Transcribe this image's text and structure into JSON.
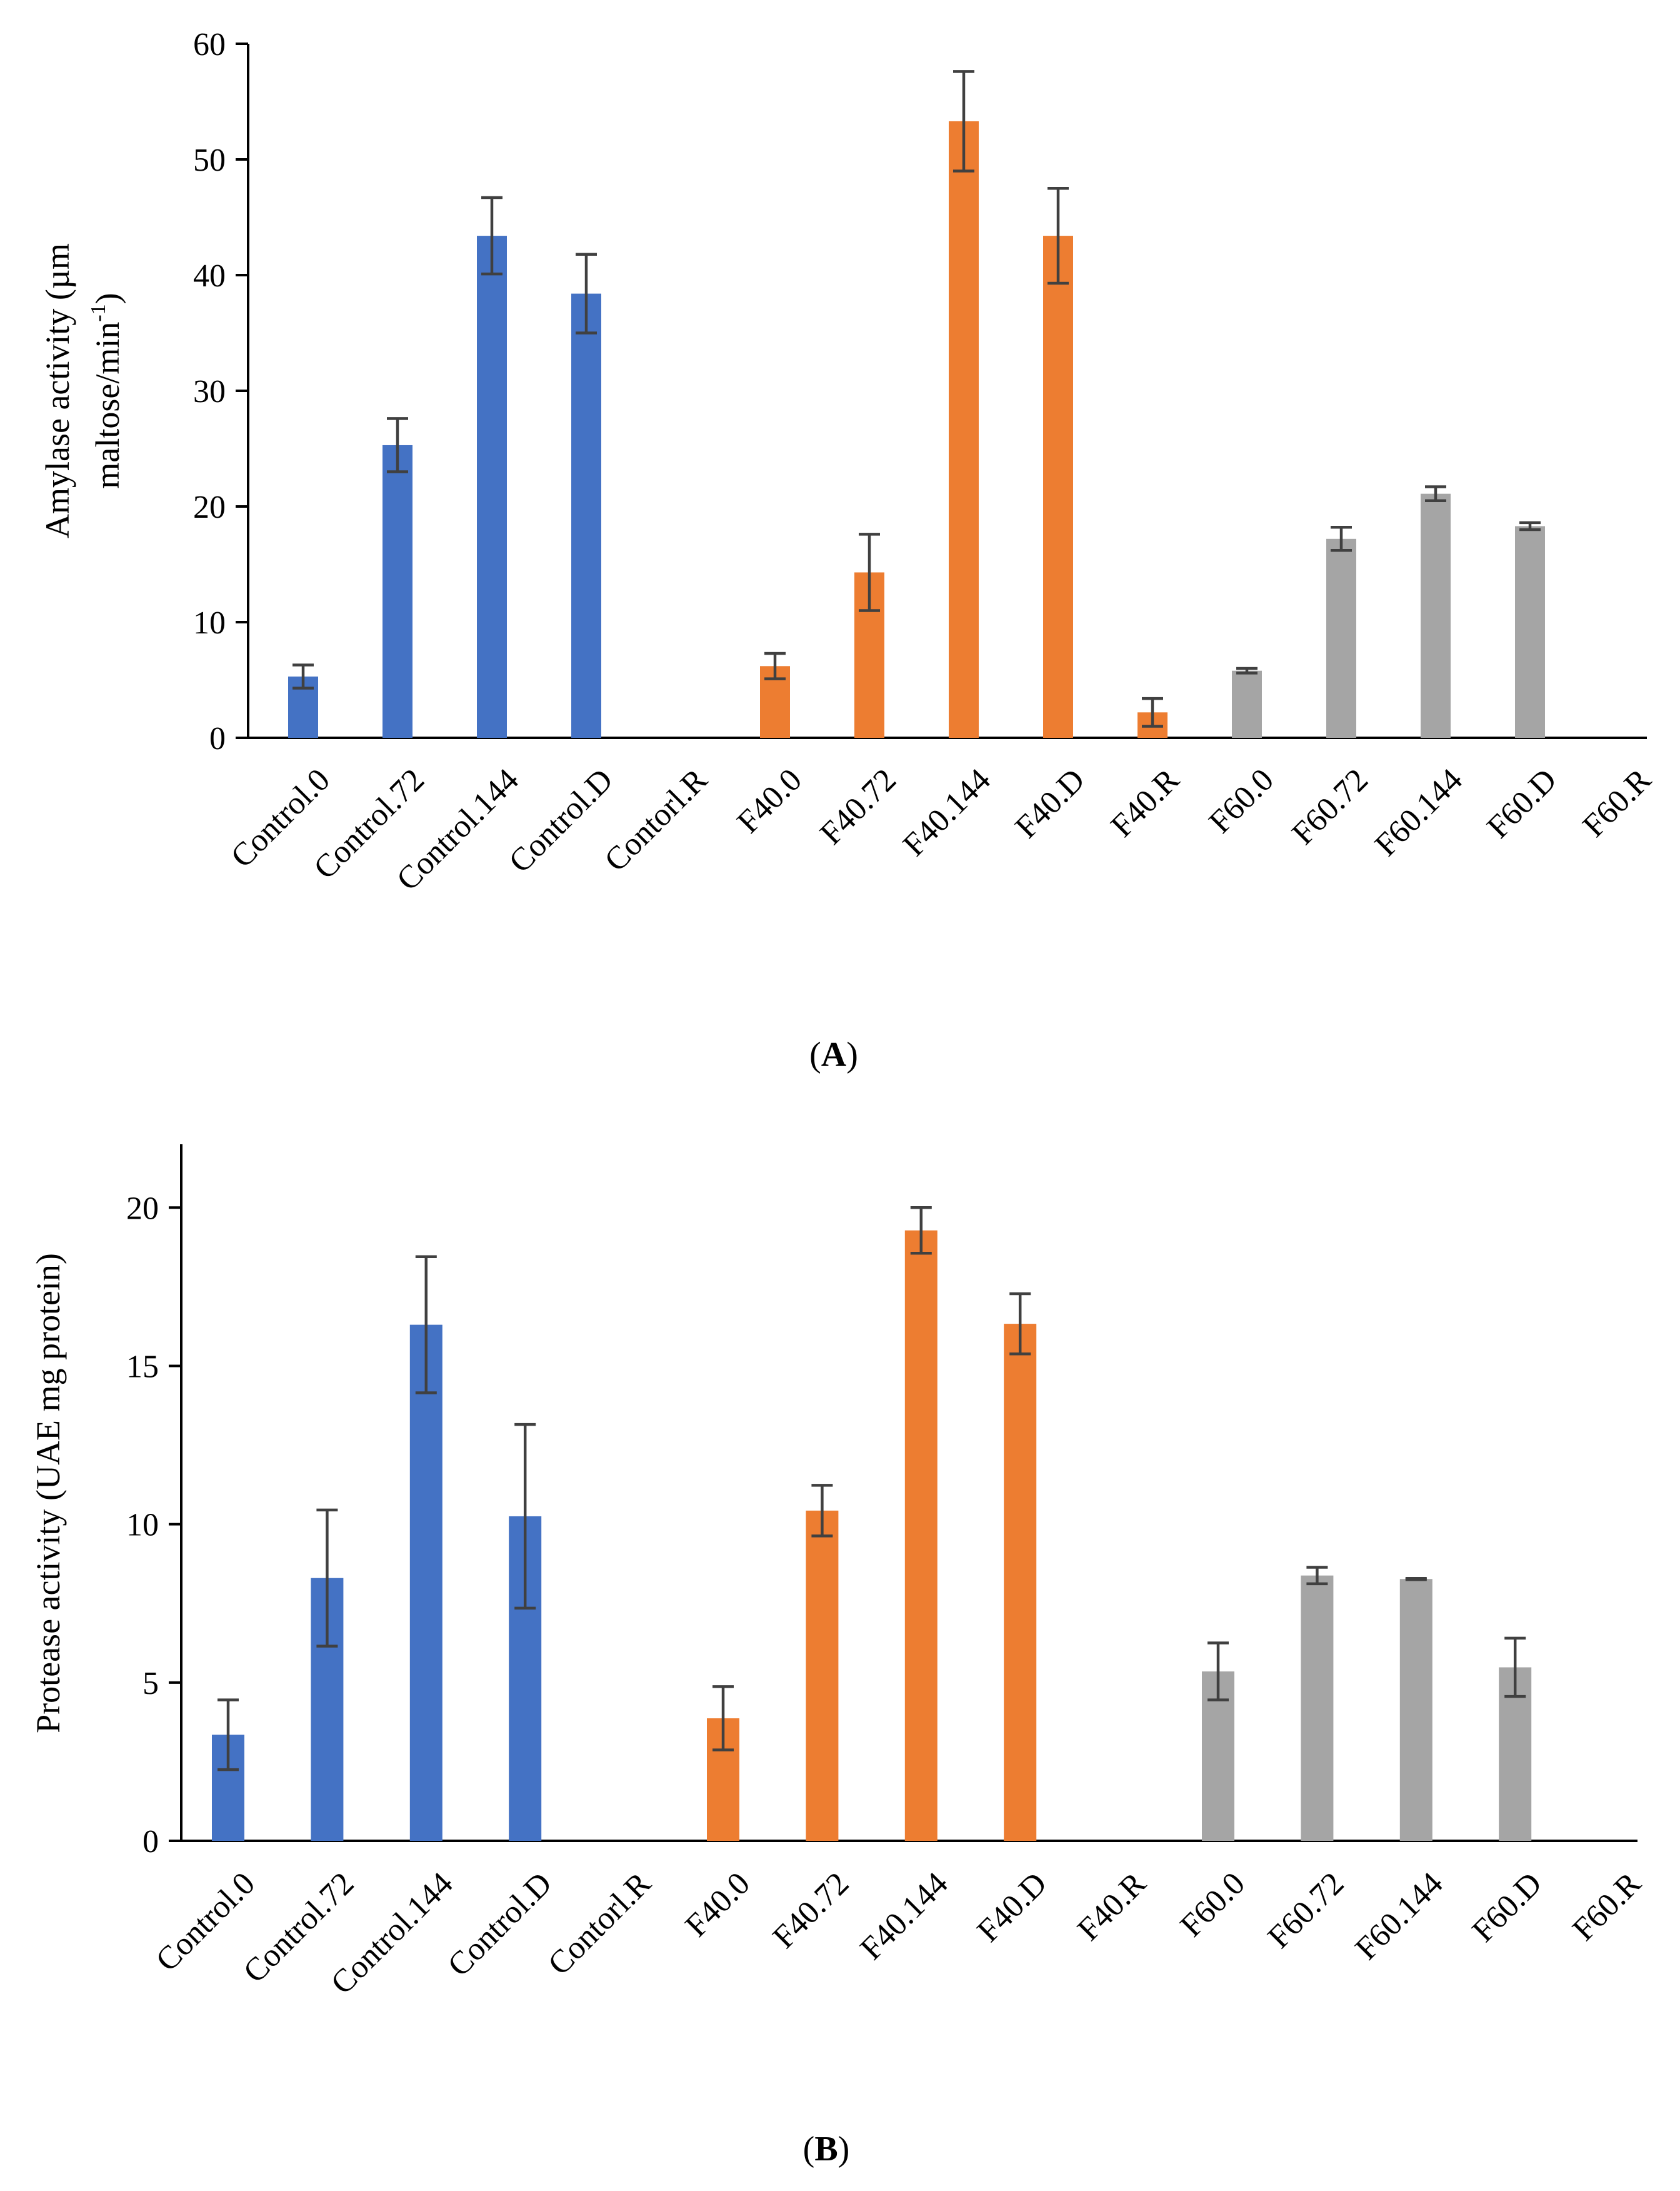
{
  "chart_data": [
    {
      "id": "A",
      "type": "bar",
      "panel_label": "A",
      "ylabel_lines": [
        "Amylase activity (µm",
        "maltose/min"
      ],
      "ylabel_superscript": "-1",
      "ylabel_close": ")",
      "xlabel": "",
      "ylim": [
        0,
        60
      ],
      "yticks": [
        0,
        10,
        20,
        30,
        40,
        50,
        60
      ],
      "grid": false,
      "legend": "none",
      "categories": [
        "Control.0",
        "Control.72",
        "Control.144",
        "Control.D",
        "Contorl.R",
        "F40.0",
        "F40.72",
        "F40.144",
        "F40.D",
        "F40.R",
        "F60.0",
        "F60.72",
        "F60.144",
        "F60.D",
        "F60.R"
      ],
      "values": [
        5.3,
        25.3,
        43.4,
        38.4,
        0,
        6.2,
        14.3,
        53.3,
        43.4,
        2.2,
        5.8,
        17.2,
        21.1,
        18.3,
        0
      ],
      "errors": [
        1.0,
        2.3,
        3.3,
        3.4,
        0,
        1.1,
        3.3,
        4.3,
        4.1,
        1.2,
        0.2,
        1.0,
        0.6,
        0.3,
        0
      ],
      "groups": [
        "control",
        "control",
        "control",
        "control",
        "control",
        "f40",
        "f40",
        "f40",
        "f40",
        "f40",
        "f60",
        "f60",
        "f60",
        "f60",
        "f60"
      ]
    },
    {
      "id": "B",
      "type": "bar",
      "panel_label": "B",
      "ylabel_lines": [
        "Protease activity (UAE mg protein)"
      ],
      "ylabel_superscript": "",
      "ylabel_close": "",
      "xlabel": "",
      "ylim": [
        0,
        22
      ],
      "yticks": [
        0,
        5,
        10,
        15,
        20
      ],
      "grid": false,
      "legend": "none",
      "categories": [
        "Control.0",
        "Control.72",
        "Control.144",
        "Control.D",
        "Contorl.R",
        "F40.0",
        "F40.72",
        "F40.144",
        "F40.D",
        "F40.R",
        "F60.0",
        "F60.72",
        "F60.144",
        "F60.D",
        "F60.R"
      ],
      "values": [
        3.35,
        8.3,
        16.3,
        10.25,
        0,
        3.87,
        10.43,
        19.28,
        16.33,
        0,
        5.35,
        8.38,
        8.27,
        5.48,
        0
      ],
      "errors": [
        1.1,
        2.15,
        2.15,
        2.9,
        0,
        1.0,
        0.8,
        0.72,
        0.95,
        0,
        0.9,
        0.26,
        0.02,
        0.92,
        0
      ],
      "groups": [
        "control",
        "control",
        "control",
        "control",
        "control",
        "f40",
        "f40",
        "f40",
        "f40",
        "f40",
        "f60",
        "f60",
        "f60",
        "f60",
        "f60"
      ]
    }
  ],
  "colors": {
    "control": "#4472c4",
    "f40": "#ed7d31",
    "f60": "#a5a5a5",
    "error_bar": "#404040",
    "axis": "#000000"
  }
}
